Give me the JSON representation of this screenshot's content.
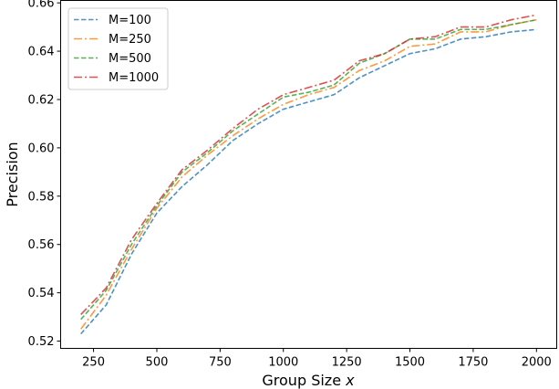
{
  "chart_data": {
    "type": "line",
    "title": "",
    "xlabel": "Group Size",
    "xlabel_var": "x",
    "ylabel": "Precision",
    "xlim": [
      120,
      2080
    ],
    "ylim": [
      0.517,
      0.661
    ],
    "xticks": [
      250,
      500,
      750,
      1000,
      1250,
      1500,
      1750,
      2000
    ],
    "yticks": [
      0.52,
      0.54,
      0.56,
      0.58,
      0.6,
      0.62,
      0.64,
      0.66
    ],
    "ytick_labels": [
      "0.52",
      "0.54",
      "0.56",
      "0.58",
      "0.60",
      "0.62",
      "0.64",
      "0.66"
    ],
    "grid": false,
    "legend_position": "top-left",
    "x": [
      200,
      300,
      400,
      500,
      600,
      700,
      800,
      900,
      1000,
      1100,
      1200,
      1300,
      1400,
      1500,
      1600,
      1700,
      1800,
      1900,
      2000
    ],
    "series": [
      {
        "name": "M=100",
        "color": "#1f77b4",
        "dash": "dashed",
        "values": [
          0.523,
          0.535,
          0.556,
          0.573,
          0.584,
          0.593,
          0.603,
          0.61,
          0.616,
          0.619,
          0.622,
          0.629,
          0.634,
          0.639,
          0.641,
          0.645,
          0.646,
          0.648,
          0.649
        ]
      },
      {
        "name": "M=250",
        "color": "#ff7f0e",
        "dash": "dashdot",
        "values": [
          0.525,
          0.539,
          0.558,
          0.575,
          0.588,
          0.597,
          0.605,
          0.612,
          0.618,
          0.622,
          0.625,
          0.632,
          0.636,
          0.642,
          0.643,
          0.648,
          0.648,
          0.651,
          0.653
        ]
      },
      {
        "name": "M=500",
        "color": "#2ca02c",
        "dash": "dashed",
        "values": [
          0.529,
          0.541,
          0.56,
          0.576,
          0.59,
          0.598,
          0.607,
          0.614,
          0.621,
          0.623,
          0.626,
          0.635,
          0.639,
          0.645,
          0.645,
          0.649,
          0.649,
          0.651,
          0.653
        ]
      },
      {
        "name": "M=1000",
        "color": "#d62728",
        "dash": "dashdot",
        "values": [
          0.531,
          0.542,
          0.562,
          0.577,
          0.591,
          0.599,
          0.608,
          0.616,
          0.622,
          0.625,
          0.628,
          0.636,
          0.639,
          0.645,
          0.646,
          0.65,
          0.65,
          0.653,
          0.655
        ]
      }
    ]
  }
}
